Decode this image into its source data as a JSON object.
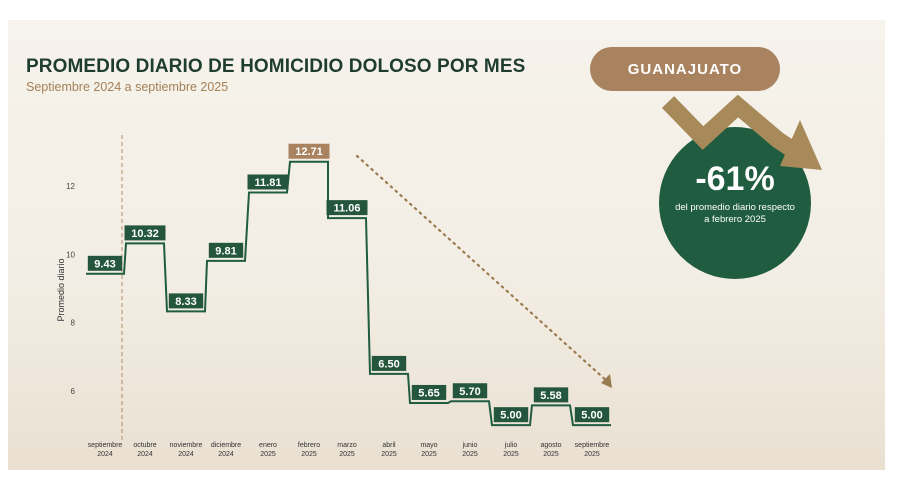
{
  "title": "PROMEDIO DIARIO DE HOMICIDIO DOLOSO POR MES",
  "subtitle": "Septiembre 2024 a septiembre 2025",
  "state": "GUANAJUATO",
  "badge": {
    "value": "-61%",
    "text": "del promedio diario respecto a febrero 2025"
  },
  "colors": {
    "dark_green": "#1f5c40",
    "label_green": "#24563d",
    "highlight_brown": "#a9835f",
    "arrow_brown": "#9a7b4f"
  },
  "chart_data": {
    "type": "line",
    "step": true,
    "ylabel": "Promedio diario",
    "ylim": [
      5,
      13
    ],
    "yticks": [
      6,
      8,
      10,
      12
    ],
    "categories": [
      [
        "septiembre",
        "2024"
      ],
      [
        "octubre",
        "2024"
      ],
      [
        "noviembre",
        "2024"
      ],
      [
        "diciembre",
        "2024"
      ],
      [
        "enero",
        "2025"
      ],
      [
        "febrero",
        "2025"
      ],
      [
        "marzo",
        "2025"
      ],
      [
        "abril",
        "2025"
      ],
      [
        "mayo",
        "2025"
      ],
      [
        "junio",
        "2025"
      ],
      [
        "julio",
        "2025"
      ],
      [
        "agosto",
        "2025"
      ],
      [
        "septiembre",
        "2025"
      ]
    ],
    "values": [
      9.43,
      10.32,
      8.33,
      9.81,
      11.81,
      12.71,
      11.06,
      6.5,
      5.65,
      5.7,
      5.0,
      5.58,
      5.0
    ],
    "labels": [
      "9.43",
      "10.32",
      "8.33",
      "9.81",
      "11.81",
      "12.71",
      "11.06",
      "6.50",
      "5.65",
      "5.70",
      "5.00",
      "5.58",
      "5.00"
    ],
    "highlight_index": 5,
    "reference_line_index": 0,
    "trend_arrow": {
      "from_index": 6,
      "to_index": 12,
      "direction": "down"
    }
  }
}
